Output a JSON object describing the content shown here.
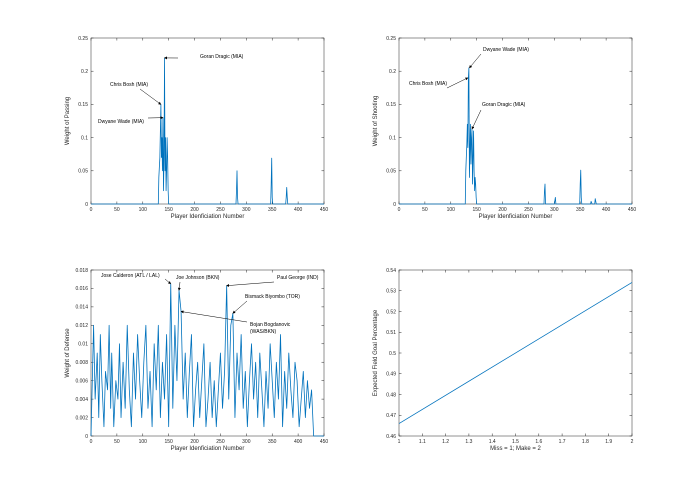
{
  "chart_data": [
    {
      "type": "line",
      "xlabel": "Player Idenficiation Number",
      "ylabel": "Weight of Passing",
      "xlim": [
        0,
        450
      ],
      "ylim": [
        0,
        0.25
      ],
      "xticks": [
        0,
        50,
        100,
        150,
        200,
        250,
        300,
        350,
        400,
        450
      ],
      "yticks": [
        0,
        0.05,
        0.1,
        0.15,
        0.2,
        0.25
      ],
      "x": [
        0,
        130,
        131,
        133,
        134,
        135,
        136,
        137,
        138,
        139,
        140,
        141,
        142,
        143,
        144,
        145,
        146,
        147,
        148,
        149,
        150,
        280,
        281,
        282,
        283,
        284,
        347,
        348,
        349,
        350,
        351,
        376,
        377,
        378,
        379,
        380,
        450
      ],
      "y": [
        0,
        0,
        0.04,
        0.07,
        0.11,
        0.15,
        0.07,
        0.1,
        0.05,
        0.13,
        0.02,
        0.07,
        0.22,
        0.05,
        0.1,
        0.02,
        0.05,
        0.1,
        0.07,
        0.02,
        0,
        0,
        0.02,
        0.05,
        0.01,
        0,
        0,
        0.03,
        0.069,
        0.01,
        0,
        0,
        0.01,
        0.025,
        0.01,
        0,
        0
      ],
      "annotations": [
        {
          "text": "Goran Dragic (MIA)",
          "x": 142,
          "y": 0.22
        },
        {
          "text": "Chris Bosh (MIA)",
          "x": 135,
          "y": 0.15
        },
        {
          "text": "Dwyane Wade (MIA)",
          "x": 139,
          "y": 0.13
        }
      ]
    },
    {
      "type": "line",
      "xlabel": "Player Idenficiation Number",
      "ylabel": "Weight of Shooting",
      "xlim": [
        0,
        450
      ],
      "ylim": [
        0,
        0.25
      ],
      "xticks": [
        0,
        50,
        100,
        150,
        200,
        250,
        300,
        350,
        400,
        450
      ],
      "yticks": [
        0,
        0.05,
        0.1,
        0.15,
        0.2,
        0.25
      ],
      "x": [
        0,
        128,
        129,
        131,
        132,
        133,
        134,
        135,
        136,
        137,
        138,
        139,
        140,
        141,
        142,
        143,
        144,
        145,
        146,
        147,
        148,
        149,
        150,
        280,
        281,
        282,
        283,
        300,
        301,
        302,
        303,
        349,
        350,
        351,
        352,
        353,
        370,
        371,
        372,
        373,
        378,
        379,
        380,
        381,
        450
      ],
      "y": [
        0,
        0,
        0.05,
        0.09,
        0.12,
        0.085,
        0.19,
        0.205,
        0.04,
        0.08,
        0.12,
        0.06,
        0.1,
        0.113,
        0.03,
        0.07,
        0.11,
        0.05,
        0.02,
        0.04,
        0.03,
        0.01,
        0,
        0,
        0.02,
        0.03,
        0,
        0,
        0.005,
        0.01,
        0,
        0,
        0.03,
        0.051,
        0.01,
        0,
        0,
        0.004,
        0.002,
        0,
        0,
        0.008,
        0.004,
        0,
        0
      ],
      "annotations": [
        {
          "text": "Dwyane Wade (MIA)",
          "x": 136,
          "y": 0.205
        },
        {
          "text": "Chris Bosh (MIA)",
          "x": 133,
          "y": 0.19
        },
        {
          "text": "Goran Dragic (MIA)",
          "x": 141,
          "y": 0.113
        }
      ]
    },
    {
      "type": "line",
      "xlabel": "Player Idenficiation Number",
      "ylabel": "Weight of Defense",
      "xlim": [
        0,
        450
      ],
      "ylim": [
        0,
        0.018
      ],
      "xticks": [
        0,
        50,
        100,
        150,
        200,
        250,
        300,
        350,
        400,
        450
      ],
      "yticks": [
        0,
        0.002,
        0.004,
        0.006,
        0.008,
        0.01,
        0.012,
        0.014,
        0.016,
        0.018
      ],
      "x": [
        0,
        5,
        8,
        12,
        15,
        18,
        21,
        25,
        28,
        32,
        35,
        38,
        40,
        44,
        48,
        52,
        55,
        58,
        62,
        66,
        70,
        74,
        78,
        82,
        86,
        90,
        94,
        98,
        102,
        106,
        110,
        114,
        118,
        122,
        126,
        130,
        134,
        138,
        142,
        146,
        150,
        154,
        158,
        162,
        166,
        170,
        174,
        178,
        182,
        186,
        190,
        194,
        198,
        202,
        206,
        210,
        214,
        218,
        222,
        226,
        230,
        234,
        238,
        242,
        246,
        250,
        254,
        258,
        262,
        266,
        270,
        274,
        278,
        282,
        286,
        290,
        294,
        298,
        302,
        306,
        310,
        314,
        318,
        322,
        326,
        330,
        334,
        338,
        342,
        346,
        350,
        354,
        358,
        362,
        366,
        370,
        374,
        378,
        382,
        386,
        390,
        394,
        398,
        402,
        406,
        410,
        414,
        418,
        422,
        426,
        430,
        450
      ],
      "y": [
        0,
        0.012,
        0.004,
        0.009,
        0.002,
        0.011,
        0.006,
        0.001,
        0.007,
        0.005,
        0.012,
        0.003,
        0.009,
        0.001,
        0.006,
        0.004,
        0.01,
        0.002,
        0.008,
        0.003,
        0.012,
        0.005,
        0.001,
        0.009,
        0.004,
        0.011,
        0.006,
        0.002,
        0.008,
        0.012,
        0.003,
        0.007,
        0.001,
        0.01,
        0.005,
        0.012,
        0.002,
        0.008,
        0.004,
        0.011,
        0.001,
        0.0165,
        0.003,
        0.012,
        0.006,
        0.0158,
        0.0135,
        0.004,
        0.009,
        0.002,
        0.007,
        0.011,
        0.001,
        0.005,
        0.008,
        0.002,
        0.006,
        0.01,
        0.001,
        0.004,
        0.008,
        0.002,
        0.006,
        0.001,
        0.005,
        0.009,
        0.003,
        0.007,
        0.0163,
        0.004,
        0.012,
        0.0133,
        0.002,
        0.009,
        0.005,
        0.011,
        0.003,
        0.007,
        0.001,
        0.006,
        0.01,
        0.004,
        0.008,
        0.002,
        0.009,
        0.005,
        0.001,
        0.007,
        0.003,
        0.01,
        0.006,
        0.002,
        0.008,
        0.004,
        0.011,
        0.001,
        0.007,
        0.003,
        0.009,
        0.005,
        0.002,
        0.008,
        0.006,
        0.001,
        0.004,
        0.007,
        0.002,
        0.006,
        0.003,
        0.005,
        0,
        0
      ],
      "annotations": [
        {
          "text": "Jose Calderon (ATL / LAL)",
          "x": 154,
          "y": 0.0165
        },
        {
          "text": "Joe Johnson (BKN)",
          "x": 170,
          "y": 0.0158
        },
        {
          "text": "Paul George (IND)",
          "x": 262,
          "y": 0.0163
        },
        {
          "text": "Bismack Biyombo (TOR)",
          "x": 274,
          "y": 0.0133
        },
        {
          "text": "Bojan Bogdanovic",
          "text2": "(WAS/BKN)",
          "x": 174,
          "y": 0.0135
        }
      ]
    },
    {
      "type": "line",
      "xlabel": "Miss = 1; Make = 2",
      "ylabel": "Expected Field Goal Percentage",
      "xlim": [
        1,
        2
      ],
      "ylim": [
        0.46,
        0.54
      ],
      "xticks": [
        1,
        1.1,
        1.2,
        1.3,
        1.4,
        1.5,
        1.6,
        1.7,
        1.8,
        1.9,
        2
      ],
      "yticks": [
        0.46,
        0.47,
        0.48,
        0.49,
        0.5,
        0.51,
        0.52,
        0.53,
        0.54
      ],
      "x": [
        1,
        2
      ],
      "y": [
        0.466,
        0.534
      ],
      "annotations": []
    }
  ],
  "colors": {
    "line": "#0072bd",
    "axis": "#262626"
  }
}
